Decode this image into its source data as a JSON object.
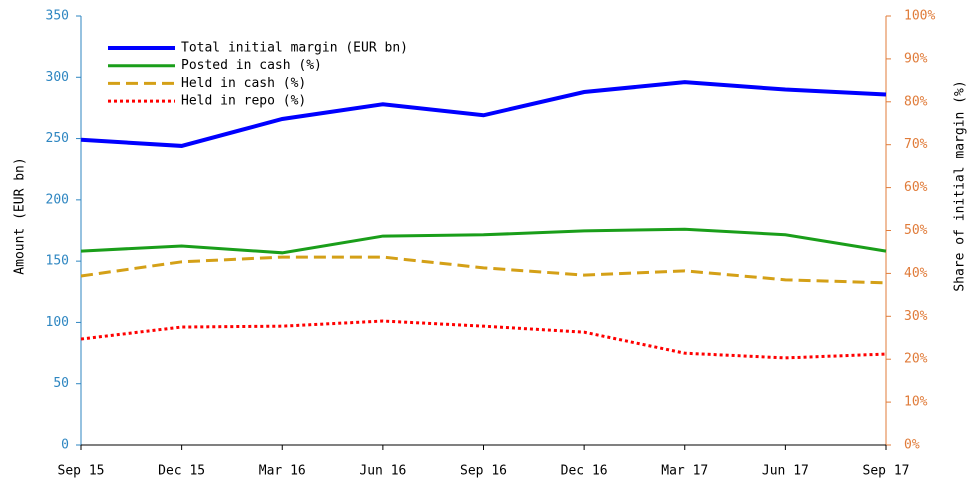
{
  "chart_data": {
    "type": "line",
    "categories": [
      "Sep 15",
      "Dec 15",
      "Mar 16",
      "Jun 16",
      "Sep 16",
      "Dec 16",
      "Mar 17",
      "Jun 17",
      "Sep 17"
    ],
    "ylabel": "Amount (EUR bn)",
    "y2label": "Share of initial margin (%)",
    "ylim": [
      0,
      350
    ],
    "yticks": [
      0,
      50,
      100,
      150,
      200,
      250,
      300,
      350
    ],
    "y2lim": [
      0,
      100
    ],
    "y2ticks": [
      {
        "value": 0,
        "label": "0%"
      },
      {
        "value": 10,
        "label": "10%"
      },
      {
        "value": 20,
        "label": "20%"
      },
      {
        "value": 30,
        "label": "30%"
      },
      {
        "value": 40,
        "label": "40%"
      },
      {
        "value": 50,
        "label": "50%"
      },
      {
        "value": 60,
        "label": "60%"
      },
      {
        "value": 70,
        "label": "70%"
      },
      {
        "value": 80,
        "label": "80%"
      },
      {
        "value": 90,
        "label": "90%"
      },
      {
        "value": 100,
        "label": "100%"
      }
    ],
    "axis_colors": {
      "y": "#2e86c1",
      "y2": "#e07b39"
    },
    "legend": "upper left",
    "series": [
      {
        "name": "Total initial margin (EUR bn)",
        "color": "#0000ff",
        "style": "solid",
        "values": [
          249,
          244,
          266,
          278,
          269,
          288,
          296,
          290,
          286
        ]
      },
      {
        "name": "Posted in cash (%)",
        "color": "#1a9e1a",
        "style": "solid",
        "axis": "y2",
        "values": [
          45.2,
          46.4,
          44.8,
          48.7,
          49.0,
          49.9,
          50.3,
          49.0,
          45.2
        ]
      },
      {
        "name": "Held in cash (%)",
        "color": "#d4a017",
        "style": "dashed",
        "axis": "y2",
        "values": [
          39.4,
          42.7,
          43.8,
          43.8,
          41.3,
          39.6,
          40.6,
          38.5,
          37.8
        ]
      },
      {
        "name": "Held in repo (%)",
        "color": "#ff0000",
        "style": "dotted",
        "axis": "y2",
        "values": [
          24.7,
          27.5,
          27.7,
          28.9,
          27.7,
          26.3,
          21.4,
          20.3,
          21.2
        ]
      }
    ]
  }
}
